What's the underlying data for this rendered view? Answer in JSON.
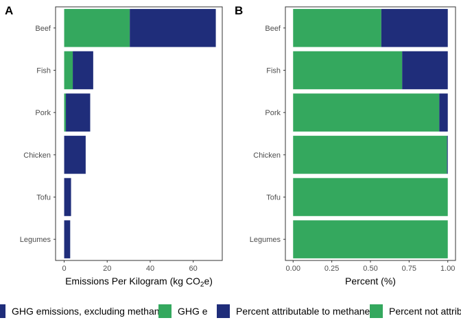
{
  "colors": {
    "green": "#34a85e",
    "navy": "#1f2d7a"
  },
  "chart_data": [
    {
      "panel": "A",
      "type": "bar",
      "orientation": "horizontal",
      "stacked": true,
      "categories": [
        "Beef",
        "Fish",
        "Pork",
        "Chicken",
        "Tofu",
        "Legumes"
      ],
      "series": [
        {
          "name": "GHG e",
          "color": "#34a85e",
          "values": [
            30.5,
            4,
            0.8,
            0,
            0,
            0
          ]
        },
        {
          "name": "GHG emissions, excluding methane",
          "color": "#1f2d7a",
          "values": [
            40,
            9.5,
            11.3,
            10,
            3.2,
            2.8
          ]
        }
      ],
      "xlabel": "Emissions Per Kilogram (kg CO",
      "xlabel_sub": "2",
      "xlabel_end": "e)",
      "xlim": [
        -4,
        73.5
      ],
      "xticks": [
        0,
        20,
        40,
        60
      ],
      "xtick_labels": [
        "0",
        "20",
        "40",
        "60"
      ]
    },
    {
      "panel": "B",
      "type": "bar",
      "orientation": "horizontal",
      "stacked": true,
      "categories": [
        "Beef",
        "Fish",
        "Pork",
        "Chicken",
        "Tofu",
        "Legumes"
      ],
      "series": [
        {
          "name": "Percent not attributable to methane",
          "color": "#34a85e",
          "values": [
            0.57,
            0.705,
            0.945,
            0.995,
            1,
            1
          ]
        },
        {
          "name": "Percent attributable to methane",
          "color": "#1f2d7a",
          "values": [
            0.43,
            0.295,
            0.055,
            0.005,
            0,
            0
          ]
        }
      ],
      "xlabel": "Percent (%)",
      "xlim": [
        -0.05,
        1.05
      ],
      "xticks": [
        0,
        0.25,
        0.5,
        0.75,
        1
      ],
      "xtick_labels": [
        "0.00",
        "0.25",
        "0.50",
        "0.75",
        "1.00"
      ]
    }
  ],
  "legend": [
    {
      "label": "GHG emissions, excluding methane",
      "color": "#1f2d7a"
    },
    {
      "label": "GHG e",
      "color": "#34a85e"
    },
    {
      "label": "Percent attributable to methane",
      "color": "#1f2d7a"
    },
    {
      "label": "Percent not attributable to methane",
      "color": "#34a85e"
    }
  ]
}
